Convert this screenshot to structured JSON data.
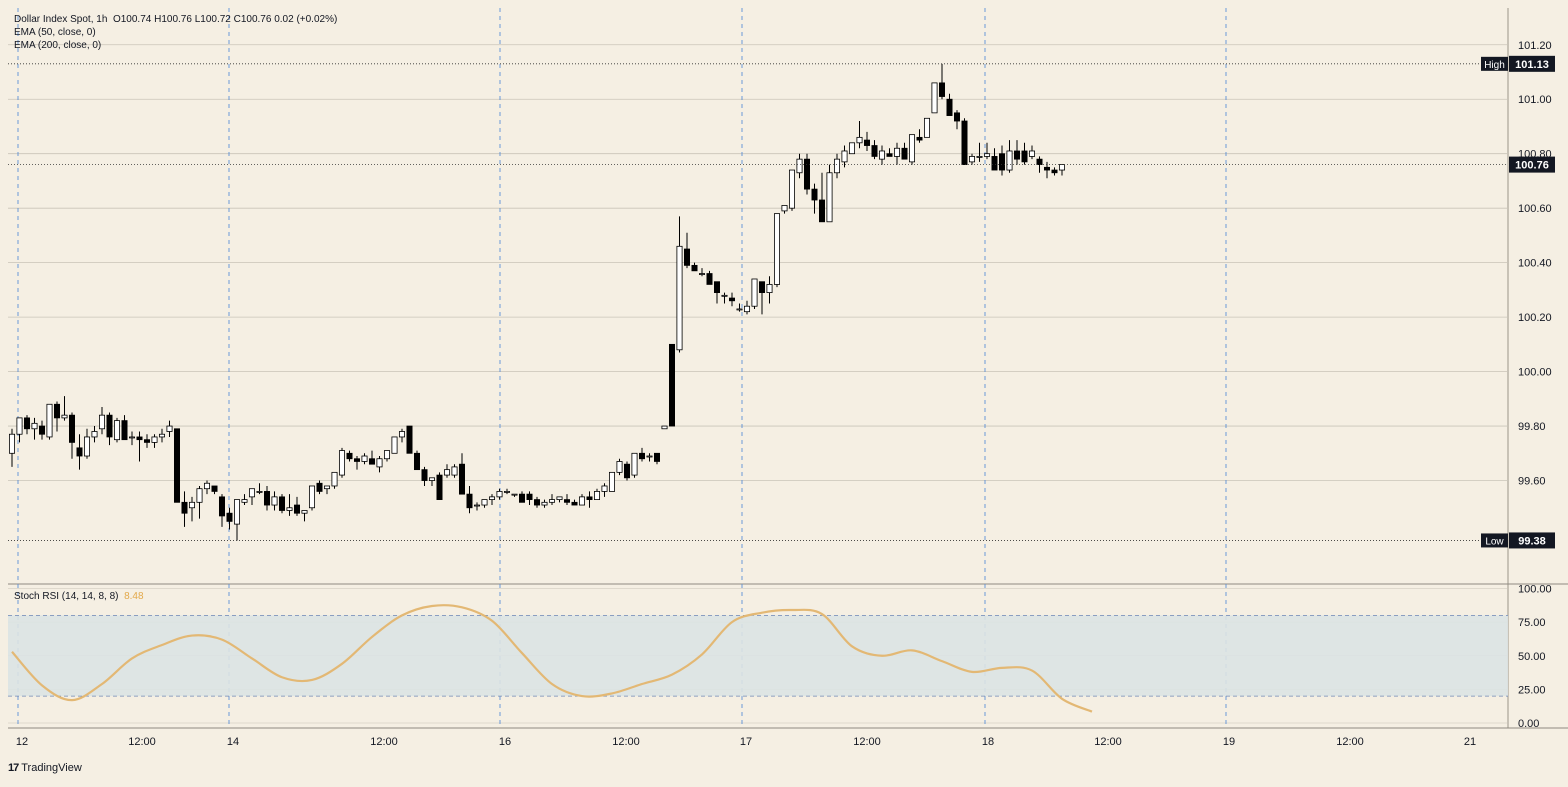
{
  "header": {
    "line1_symbol": "Dollar Index Spot",
    "line1_interval": "1h",
    "line1_ohlc": "O100.74  H100.76  L100.72  C100.76  0.02 (+0.02%)",
    "line2": "EMA (50, close, 0)",
    "line3": "EMA (200, close, 0)",
    "osc_title": "Stoch RSI (14, 14, 8, 8)",
    "osc_value": "8.48"
  },
  "branding": {
    "logo_mark": "17",
    "label": "TradingView"
  },
  "colors": {
    "background": "#f5efe3",
    "candle_up_fill": "#ffffff",
    "candle_down_fill": "#000000",
    "stoch_line": "#e3b874",
    "stoch_band": "#dbe3e3",
    "grid": "#c9c4b8",
    "day_separator": "#5b8fd6"
  },
  "markers": {
    "high_label": "High",
    "high_value": "101.13",
    "low_label": "Low",
    "low_value": "99.38",
    "last_value": "100.76"
  },
  "chart_data": [
    {
      "type": "candlestick",
      "title": "Dollar Index Spot, 1h",
      "ylim": [
        99.33,
        101.25
      ],
      "y_ticks": [
        "101.20",
        "101.00",
        "100.80",
        "100.60",
        "100.40",
        "100.20",
        "100.00",
        "99.80",
        "99.60"
      ],
      "x_ticks": [
        "12",
        "12:00",
        "14",
        "12:00",
        "16",
        "12:00",
        "17",
        "12:00",
        "18",
        "12:00",
        "19",
        "12:00",
        "21"
      ],
      "high": 101.13,
      "low": 99.38,
      "last": 100.76,
      "ohlc": [
        [
          99.7,
          99.79,
          99.65,
          99.77
        ],
        [
          99.77,
          99.83,
          99.74,
          99.83
        ],
        [
          99.83,
          99.84,
          99.77,
          99.79
        ],
        [
          99.79,
          99.83,
          99.75,
          99.81
        ],
        [
          99.8,
          99.82,
          99.75,
          99.77
        ],
        [
          99.76,
          99.88,
          99.75,
          99.88
        ],
        [
          99.88,
          99.89,
          99.78,
          99.83
        ],
        [
          99.83,
          99.91,
          99.82,
          99.84
        ],
        [
          99.84,
          99.85,
          99.68,
          99.74
        ],
        [
          99.72,
          99.77,
          99.64,
          99.69
        ],
        [
          99.69,
          99.79,
          99.68,
          99.76
        ],
        [
          99.76,
          99.8,
          99.74,
          99.78
        ],
        [
          99.79,
          99.87,
          99.77,
          99.84
        ],
        [
          99.84,
          99.85,
          99.73,
          99.76
        ],
        [
          99.75,
          99.83,
          99.74,
          99.82
        ],
        [
          99.82,
          99.84,
          99.75,
          99.75
        ],
        [
          99.76,
          99.78,
          99.73,
          99.76
        ],
        [
          99.76,
          99.78,
          99.67,
          99.75
        ],
        [
          99.75,
          99.77,
          99.72,
          99.74
        ],
        [
          99.74,
          99.77,
          99.72,
          99.76
        ],
        [
          99.76,
          99.79,
          99.74,
          99.77
        ],
        [
          99.78,
          99.82,
          99.76,
          99.8
        ],
        [
          99.79,
          99.79,
          99.52,
          99.52
        ],
        [
          99.52,
          99.56,
          99.43,
          99.48
        ],
        [
          99.5,
          99.54,
          99.45,
          99.52
        ],
        [
          99.52,
          99.58,
          99.46,
          99.57
        ],
        [
          99.57,
          99.6,
          99.55,
          99.59
        ],
        [
          99.58,
          99.58,
          99.55,
          99.56
        ],
        [
          99.54,
          99.55,
          99.43,
          99.47
        ],
        [
          99.48,
          99.5,
          99.42,
          99.45
        ],
        [
          99.44,
          99.53,
          99.38,
          99.53
        ],
        [
          99.52,
          99.55,
          99.51,
          99.53
        ],
        [
          99.54,
          99.57,
          99.51,
          99.57
        ],
        [
          99.56,
          99.59,
          99.55,
          99.56
        ],
        [
          99.56,
          99.58,
          99.49,
          99.51
        ],
        [
          99.51,
          99.56,
          99.49,
          99.54
        ],
        [
          99.54,
          99.55,
          99.48,
          99.49
        ],
        [
          99.49,
          99.55,
          99.47,
          99.5
        ],
        [
          99.51,
          99.54,
          99.47,
          99.48
        ],
        [
          99.48,
          99.49,
          99.45,
          99.49
        ],
        [
          99.5,
          99.58,
          99.49,
          99.58
        ],
        [
          99.59,
          99.6,
          99.55,
          99.56
        ],
        [
          99.57,
          99.58,
          99.55,
          99.58
        ],
        [
          99.58,
          99.63,
          99.57,
          99.63
        ],
        [
          99.62,
          99.72,
          99.61,
          99.71
        ],
        [
          99.7,
          99.71,
          99.67,
          99.68
        ],
        [
          99.68,
          99.69,
          99.64,
          99.67
        ],
        [
          99.67,
          99.7,
          99.66,
          99.69
        ],
        [
          99.68,
          99.71,
          99.66,
          99.66
        ],
        [
          99.65,
          99.69,
          99.63,
          99.68
        ],
        [
          99.68,
          99.71,
          99.67,
          99.71
        ],
        [
          99.7,
          99.76,
          99.7,
          99.76
        ],
        [
          99.76,
          99.79,
          99.74,
          99.78
        ],
        [
          99.8,
          99.8,
          99.7,
          99.7
        ],
        [
          99.7,
          99.71,
          99.64,
          99.64
        ],
        [
          99.64,
          99.65,
          99.58,
          99.6
        ],
        [
          99.6,
          99.61,
          99.58,
          99.61
        ],
        [
          99.62,
          99.63,
          99.53,
          99.53
        ],
        [
          99.62,
          99.66,
          99.61,
          99.64
        ],
        [
          99.62,
          99.66,
          99.61,
          99.65
        ],
        [
          99.66,
          99.7,
          99.55,
          99.55
        ],
        [
          99.55,
          99.58,
          99.48,
          99.5
        ],
        [
          99.51,
          99.52,
          99.49,
          99.51
        ],
        [
          99.51,
          99.53,
          99.5,
          99.53
        ],
        [
          99.53,
          99.55,
          99.51,
          99.54
        ],
        [
          99.54,
          99.57,
          99.53,
          99.56
        ],
        [
          99.56,
          99.57,
          99.55,
          99.56
        ],
        [
          99.55,
          99.55,
          99.54,
          99.55
        ],
        [
          99.55,
          99.56,
          99.52,
          99.52
        ],
        [
          99.55,
          99.56,
          99.51,
          99.53
        ],
        [
          99.53,
          99.54,
          99.5,
          99.51
        ],
        [
          99.51,
          99.53,
          99.5,
          99.52
        ],
        [
          99.52,
          99.55,
          99.51,
          99.53
        ],
        [
          99.53,
          99.54,
          99.52,
          99.54
        ],
        [
          99.53,
          99.55,
          99.51,
          99.52
        ],
        [
          99.52,
          99.53,
          99.51,
          99.51
        ],
        [
          99.51,
          99.55,
          99.51,
          99.54
        ],
        [
          99.54,
          99.56,
          99.5,
          99.53
        ],
        [
          99.53,
          99.57,
          99.53,
          99.56
        ],
        [
          99.56,
          99.59,
          99.54,
          99.58
        ],
        [
          99.56,
          99.63,
          99.56,
          99.63
        ],
        [
          99.63,
          99.68,
          99.62,
          99.67
        ],
        [
          99.66,
          99.67,
          99.6,
          99.61
        ],
        [
          99.62,
          99.7,
          99.61,
          99.7
        ],
        [
          99.7,
          99.72,
          99.67,
          99.68
        ],
        [
          99.69,
          99.7,
          99.67,
          99.69
        ],
        [
          99.7,
          99.7,
          99.66,
          99.67
        ],
        [
          99.79,
          99.8,
          99.79,
          99.8
        ],
        [
          100.1,
          100.1,
          99.8,
          99.8
        ],
        [
          100.08,
          100.57,
          100.07,
          100.46
        ],
        [
          100.45,
          100.51,
          100.38,
          100.39
        ],
        [
          100.39,
          100.4,
          100.37,
          100.37
        ],
        [
          100.36,
          100.38,
          100.35,
          100.36
        ],
        [
          100.36,
          100.37,
          100.32,
          100.32
        ],
        [
          100.33,
          100.33,
          100.25,
          100.29
        ],
        [
          100.28,
          100.29,
          100.25,
          100.28
        ],
        [
          100.27,
          100.29,
          100.24,
          100.26
        ],
        [
          100.23,
          100.25,
          100.22,
          100.23
        ],
        [
          100.22,
          100.26,
          100.21,
          100.24
        ],
        [
          100.24,
          100.34,
          100.23,
          100.34
        ],
        [
          100.33,
          100.33,
          100.21,
          100.29
        ],
        [
          100.29,
          100.35,
          100.25,
          100.32
        ],
        [
          100.32,
          100.58,
          100.31,
          100.58
        ],
        [
          100.59,
          100.61,
          100.58,
          100.61
        ],
        [
          100.6,
          100.74,
          100.59,
          100.74
        ],
        [
          100.73,
          100.8,
          100.71,
          100.78
        ],
        [
          100.78,
          100.8,
          100.65,
          100.67
        ],
        [
          100.67,
          100.69,
          100.58,
          100.63
        ],
        [
          100.63,
          100.73,
          100.55,
          100.55
        ],
        [
          100.55,
          100.76,
          100.55,
          100.73
        ],
        [
          100.73,
          100.8,
          100.71,
          100.78
        ],
        [
          100.77,
          100.83,
          100.75,
          100.81
        ],
        [
          100.8,
          100.84,
          100.8,
          100.84
        ],
        [
          100.84,
          100.92,
          100.82,
          100.86
        ],
        [
          100.85,
          100.88,
          100.81,
          100.83
        ],
        [
          100.83,
          100.85,
          100.78,
          100.79
        ],
        [
          100.78,
          100.83,
          100.76,
          100.81
        ],
        [
          100.8,
          100.82,
          100.79,
          100.79
        ],
        [
          100.79,
          100.84,
          100.76,
          100.82
        ],
        [
          100.82,
          100.84,
          100.79,
          100.78
        ],
        [
          100.77,
          100.87,
          100.76,
          100.87
        ],
        [
          100.86,
          100.89,
          100.84,
          100.85
        ],
        [
          100.86,
          100.93,
          100.86,
          100.93
        ],
        [
          100.95,
          101.06,
          100.95,
          101.06
        ],
        [
          101.06,
          101.13,
          101.0,
          101.01
        ],
        [
          101.0,
          101.02,
          100.95,
          100.94
        ],
        [
          100.95,
          100.96,
          100.89,
          100.92
        ],
        [
          100.92,
          100.93,
          100.76,
          100.76
        ],
        [
          100.77,
          100.8,
          100.76,
          100.79
        ],
        [
          100.79,
          100.84,
          100.77,
          100.79
        ],
        [
          100.79,
          100.84,
          100.78,
          100.8
        ],
        [
          100.79,
          100.82,
          100.74,
          100.74
        ],
        [
          100.8,
          100.83,
          100.72,
          100.74
        ],
        [
          100.74,
          100.85,
          100.73,
          100.81
        ],
        [
          100.81,
          100.85,
          100.76,
          100.78
        ],
        [
          100.81,
          100.84,
          100.76,
          100.77
        ],
        [
          100.79,
          100.83,
          100.78,
          100.81
        ],
        [
          100.78,
          100.79,
          100.73,
          100.76
        ],
        [
          100.75,
          100.77,
          100.71,
          100.74
        ],
        [
          100.74,
          100.75,
          100.72,
          100.73
        ],
        [
          100.74,
          100.76,
          100.72,
          100.76
        ]
      ]
    },
    {
      "type": "line",
      "title": "Stoch RSI (14, 14, 8, 8)",
      "ylim": [
        0,
        100
      ],
      "y_ticks": [
        "100.00",
        "75.00",
        "50.00",
        "25.00",
        "0.00"
      ],
      "bands": [
        20,
        80
      ],
      "last_value": 8.48,
      "x": [
        0,
        4,
        8,
        12,
        16,
        20,
        24,
        28,
        32,
        36,
        40,
        44,
        48,
        52,
        56,
        60,
        64,
        68,
        72,
        76,
        80,
        84,
        88,
        92,
        96,
        100,
        104,
        108,
        112,
        116,
        120,
        124,
        128,
        132,
        136,
        140,
        144
      ],
      "values": [
        53,
        28,
        17,
        29,
        48,
        58,
        65,
        62,
        48,
        34,
        32,
        44,
        64,
        80,
        87,
        86,
        76,
        52,
        29,
        20,
        22,
        29,
        36,
        51,
        75,
        82,
        84,
        81,
        57,
        50,
        54,
        46,
        38,
        41,
        39,
        18,
        8.48
      ]
    }
  ]
}
